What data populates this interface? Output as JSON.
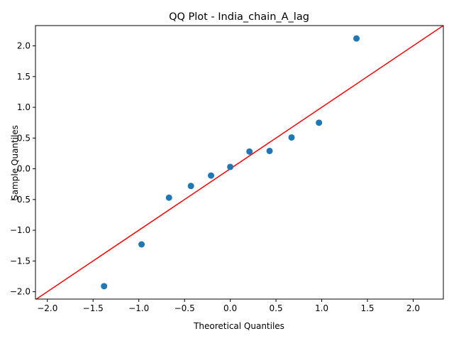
{
  "chart_data": {
    "type": "scatter",
    "title": "QQ Plot - India_chain_A_lag",
    "xlabel": "Theoretical Quantiles",
    "ylabel": "Sample Quantiles",
    "xlim": [
      -2.13,
      2.33
    ],
    "ylim": [
      -2.12,
      2.33
    ],
    "xticks": [
      -2.0,
      -1.5,
      -1.0,
      -0.5,
      0.0,
      0.5,
      1.0,
      1.5,
      2.0
    ],
    "yticks": [
      -2.0,
      -1.5,
      -1.0,
      -0.5,
      0.0,
      0.5,
      1.0,
      1.5,
      2.0
    ],
    "xtick_labels": [
      "−2.0",
      "−1.5",
      "−1.0",
      "−0.5",
      "0.0",
      "0.5",
      "1.0",
      "1.5",
      "2.0"
    ],
    "ytick_labels": [
      "−2.0",
      "−1.5",
      "−1.0",
      "−0.5",
      "0.0",
      "0.5",
      "1.0",
      "1.5",
      "2.0"
    ],
    "points": {
      "x": [
        -1.38,
        -0.97,
        -0.67,
        -0.43,
        -0.21,
        0.0,
        0.21,
        0.43,
        0.67,
        0.97,
        1.38
      ],
      "y": [
        -1.91,
        -1.23,
        -0.47,
        -0.28,
        -0.11,
        0.03,
        0.28,
        0.29,
        0.51,
        0.75,
        2.12
      ]
    },
    "reference_line": {
      "slope": 1,
      "intercept": 0
    },
    "colors": {
      "points": "#1f77b4",
      "line": "#ff0000"
    },
    "grid": false,
    "legend": "none"
  }
}
